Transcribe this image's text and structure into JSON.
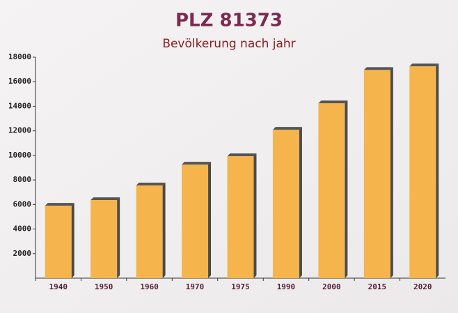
{
  "chart_data": {
    "type": "bar",
    "title": "PLZ 81373",
    "subtitle": "Bevölkerung nach jahr",
    "categories": [
      "1940",
      "1950",
      "1960",
      "1970",
      "1975",
      "1990",
      "2000",
      "2015",
      "2020"
    ],
    "values": [
      5900,
      6350,
      7550,
      9250,
      9930,
      12090,
      14240,
      16960,
      17250
    ],
    "color": "#f5b54c",
    "ylim": [
      0,
      18000
    ],
    "yticks": [
      2000,
      4000,
      6000,
      8000,
      10000,
      12000,
      14000,
      16000,
      18000
    ],
    "grid": false
  }
}
